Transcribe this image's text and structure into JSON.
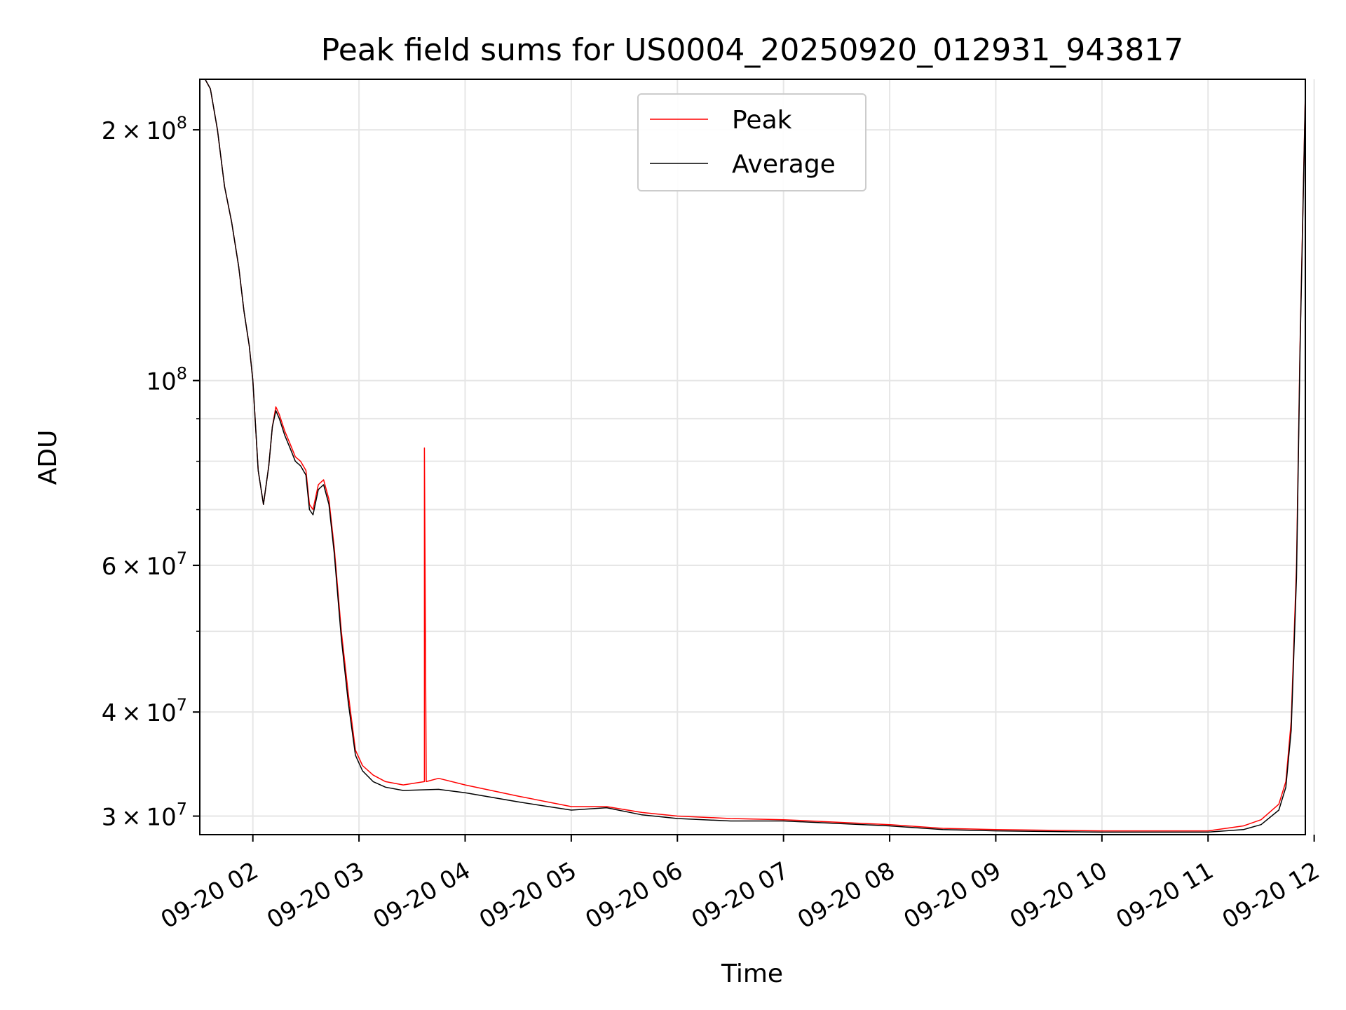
{
  "chart_data": {
    "type": "line",
    "title": "Peak field sums for US0004_20250920_012931_943817",
    "xlabel": "Time",
    "ylabel": "ADU",
    "y_scale": "log",
    "ylim": [
      28500000,
      230000000
    ],
    "x_range": [
      "2025-09-20 01:30",
      "2025-09-20 11:55"
    ],
    "x_ticks": [
      "09-20 02",
      "09-20 03",
      "09-20 04",
      "09-20 05",
      "09-20 06",
      "09-20 07",
      "09-20 08",
      "09-20 09",
      "09-20 10",
      "09-20 11",
      "09-20 12"
    ],
    "x_tick_hours": [
      2,
      3,
      4,
      5,
      6,
      7,
      8,
      9,
      10,
      11,
      12
    ],
    "y_ticks": [
      {
        "value": 200000000,
        "mant": "2",
        "exp": "8"
      },
      {
        "value": 100000000,
        "mant": "",
        "exp": "8"
      },
      {
        "value": 60000000,
        "mant": "6",
        "exp": "7"
      },
      {
        "value": 40000000,
        "mant": "4",
        "exp": "7"
      },
      {
        "value": 30000000,
        "mant": "3",
        "exp": "7"
      }
    ],
    "y_minor_ticks": [
      50000000,
      70000000,
      80000000,
      90000000
    ],
    "grid": true,
    "legend_position": "top-center",
    "series": [
      {
        "name": "Peak",
        "color": "#ff0000",
        "x": [
          "2025-09-20 01:30",
          "2025-09-20 01:33",
          "2025-09-20 01:36",
          "2025-09-20 01:40",
          "2025-09-20 01:44",
          "2025-09-20 01:48",
          "2025-09-20 01:52",
          "2025-09-20 01:55",
          "2025-09-20 01:58",
          "2025-09-20 02:00",
          "2025-09-20 02:03",
          "2025-09-20 02:06",
          "2025-09-20 02:09",
          "2025-09-20 02:11",
          "2025-09-20 02:13",
          "2025-09-20 02:15",
          "2025-09-20 02:18",
          "2025-09-20 02:21",
          "2025-09-20 02:24",
          "2025-09-20 02:27",
          "2025-09-20 02:30",
          "2025-09-20 02:32",
          "2025-09-20 02:34",
          "2025-09-20 02:37",
          "2025-09-20 02:40",
          "2025-09-20 02:43",
          "2025-09-20 02:46",
          "2025-09-20 02:50",
          "2025-09-20 02:54",
          "2025-09-20 02:58",
          "2025-09-20 03:02",
          "2025-09-20 03:08",
          "2025-09-20 03:15",
          "2025-09-20 03:25",
          "2025-09-20 03:37",
          "2025-09-20 03:37",
          "2025-09-20 03:38",
          "2025-09-20 03:45",
          "2025-09-20 04:00",
          "2025-09-20 04:30",
          "2025-09-20 05:00",
          "2025-09-20 05:20",
          "2025-09-20 05:40",
          "2025-09-20 06:00",
          "2025-09-20 06:30",
          "2025-09-20 07:00",
          "2025-09-20 07:30",
          "2025-09-20 08:00",
          "2025-09-20 08:30",
          "2025-09-20 09:00",
          "2025-09-20 09:30",
          "2025-09-20 10:00",
          "2025-09-20 10:30",
          "2025-09-20 11:00",
          "2025-09-20 11:20",
          "2025-09-20 11:30",
          "2025-09-20 11:40",
          "2025-09-20 11:44",
          "2025-09-20 11:47",
          "2025-09-20 11:50",
          "2025-09-20 11:52",
          "2025-09-20 11:55"
        ],
        "y": [
          230000000,
          230000000,
          224000000,
          200000000,
          171000000,
          155000000,
          137000000,
          121000000,
          110000000,
          100000000,
          78000000,
          71000000,
          79000000,
          88000000,
          93000000,
          91000000,
          87000000,
          84000000,
          81000000,
          80000000,
          78000000,
          71000000,
          70000000,
          75000000,
          76000000,
          72000000,
          63000000,
          50000000,
          42000000,
          36000000,
          34500000,
          33600000,
          33000000,
          32700000,
          33000000,
          83000000,
          33000000,
          33300000,
          32700000,
          31700000,
          30800000,
          30800000,
          30300000,
          30000000,
          29800000,
          29700000,
          29500000,
          29300000,
          29000000,
          28900000,
          28850000,
          28800000,
          28800000,
          28800000,
          29200000,
          29700000,
          31000000,
          33000000,
          39000000,
          60000000,
          110000000,
          222000000
        ]
      },
      {
        "name": "Average",
        "color": "#000000",
        "x": [
          "2025-09-20 01:30",
          "2025-09-20 01:33",
          "2025-09-20 01:36",
          "2025-09-20 01:40",
          "2025-09-20 01:44",
          "2025-09-20 01:48",
          "2025-09-20 01:52",
          "2025-09-20 01:55",
          "2025-09-20 01:58",
          "2025-09-20 02:00",
          "2025-09-20 02:03",
          "2025-09-20 02:06",
          "2025-09-20 02:09",
          "2025-09-20 02:11",
          "2025-09-20 02:13",
          "2025-09-20 02:15",
          "2025-09-20 02:18",
          "2025-09-20 02:21",
          "2025-09-20 02:24",
          "2025-09-20 02:27",
          "2025-09-20 02:30",
          "2025-09-20 02:32",
          "2025-09-20 02:34",
          "2025-09-20 02:37",
          "2025-09-20 02:40",
          "2025-09-20 02:43",
          "2025-09-20 02:46",
          "2025-09-20 02:50",
          "2025-09-20 02:54",
          "2025-09-20 02:58",
          "2025-09-20 03:02",
          "2025-09-20 03:08",
          "2025-09-20 03:15",
          "2025-09-20 03:25",
          "2025-09-20 03:45",
          "2025-09-20 04:00",
          "2025-09-20 04:30",
          "2025-09-20 05:00",
          "2025-09-20 05:20",
          "2025-09-20 05:40",
          "2025-09-20 06:00",
          "2025-09-20 06:30",
          "2025-09-20 07:00",
          "2025-09-20 07:30",
          "2025-09-20 08:00",
          "2025-09-20 08:30",
          "2025-09-20 09:00",
          "2025-09-20 09:30",
          "2025-09-20 10:00",
          "2025-09-20 10:30",
          "2025-09-20 11:00",
          "2025-09-20 11:20",
          "2025-09-20 11:30",
          "2025-09-20 11:40",
          "2025-09-20 11:44",
          "2025-09-20 11:47",
          "2025-09-20 11:50",
          "2025-09-20 11:52",
          "2025-09-20 11:55"
        ],
        "y": [
          230000000,
          230000000,
          224000000,
          200000000,
          171000000,
          155000000,
          137000000,
          121000000,
          110000000,
          100000000,
          78000000,
          71000000,
          79000000,
          88000000,
          92000000,
          90000000,
          86000000,
          83000000,
          80000000,
          79000000,
          77000000,
          70000000,
          69000000,
          74000000,
          75000000,
          71000000,
          62000000,
          49000000,
          41000000,
          35500000,
          34000000,
          33000000,
          32500000,
          32200000,
          32300000,
          32000000,
          31200000,
          30500000,
          30700000,
          30100000,
          29800000,
          29600000,
          29600000,
          29400000,
          29200000,
          28900000,
          28800000,
          28750000,
          28700000,
          28700000,
          28700000,
          28900000,
          29300000,
          30500000,
          32500000,
          38000000,
          58000000,
          108000000,
          220000000
        ]
      }
    ]
  }
}
